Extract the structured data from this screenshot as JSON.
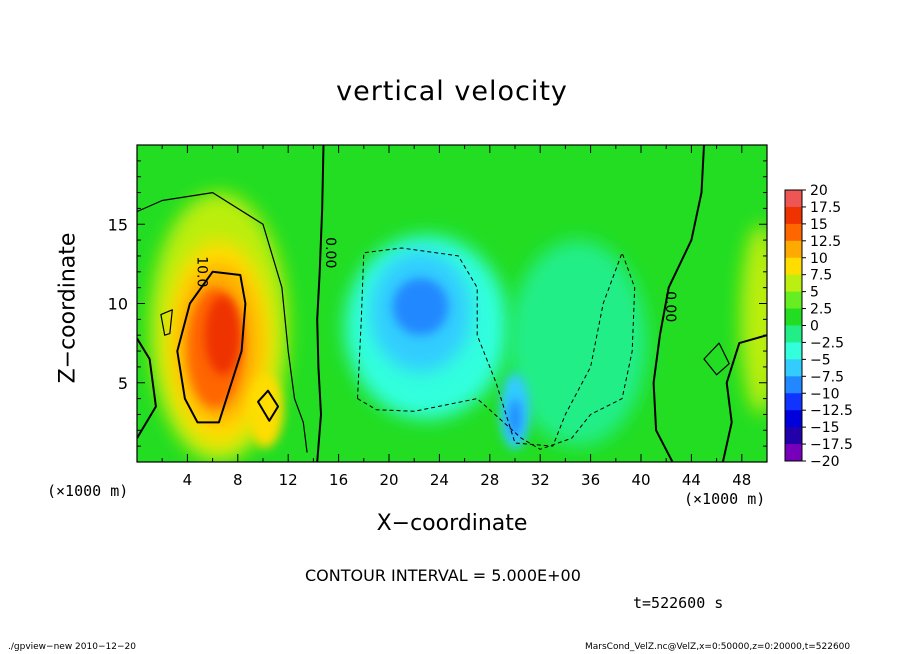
{
  "chart_data": {
    "type": "heatmap",
    "title": "vertical velocity",
    "xlabel": "X−coordinate",
    "ylabel": "Z−coordinate",
    "x_unit": "(×1000 m)",
    "xlim": [
      0,
      50
    ],
    "ylim": [
      0,
      20
    ],
    "x_ticks": [
      4,
      8,
      12,
      16,
      20,
      24,
      28,
      32,
      36,
      40,
      44,
      48
    ],
    "y_ticks": [
      5,
      10,
      15
    ],
    "colorbar": {
      "min": -20,
      "max": 20,
      "tick_labels": [
        "20",
        "17.5",
        "15",
        "12.5",
        "10",
        "7.5",
        "5",
        "2.5",
        "0",
        "−2.5",
        "−5",
        "−7.5",
        "−10",
        "−12.5",
        "−15",
        "−17.5",
        "−20"
      ]
    },
    "contour_labels": [
      "10.0",
      "0.00",
      "0.00"
    ],
    "features": [
      {
        "name": "updraft core",
        "x": 6.5,
        "z": 7,
        "value": 13
      },
      {
        "name": "right-edge updraft",
        "x": 49.5,
        "z": 9,
        "value": 5
      },
      {
        "name": "downdraft region",
        "x": 23,
        "z": 9,
        "value": -9
      },
      {
        "name": "downdraft core",
        "x": 30,
        "z": 3,
        "value": -11
      }
    ]
  },
  "contour_interval": "CONTOUR INTERVAL = 5.000E+00",
  "time_label": "t=522600 s",
  "footer_left": "./gpview−new  2010−12−20",
  "footer_right": "MarsCond_VelZ.nc@VelZ,x=0:50000,z=0:20000,t=522600",
  "colors": {
    "zero": "#22dd22",
    "positive_max": "#ff9999",
    "negative_max": "#7700bb"
  }
}
